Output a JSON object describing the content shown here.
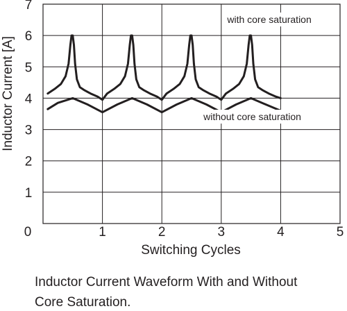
{
  "chart_data": {
    "type": "line",
    "xlabel": "Switching Cycles",
    "ylabel": "Inductor Current [A]",
    "xlim": [
      0,
      5
    ],
    "ylim": [
      0,
      7
    ],
    "x_ticks": [
      0,
      1,
      2,
      3,
      4,
      5
    ],
    "y_ticks": [
      1,
      2,
      3,
      4,
      5,
      6,
      7
    ],
    "grid": true,
    "series": [
      {
        "name": "with core saturation",
        "color": "#231f20",
        "x": [
          0.08,
          0.2,
          0.3,
          0.38,
          0.43,
          0.46,
          0.48,
          0.5,
          0.52,
          0.54,
          0.57,
          0.62,
          0.7,
          0.8,
          0.92,
          1.0,
          1.08,
          1.2,
          1.3,
          1.38,
          1.43,
          1.46,
          1.48,
          1.5,
          1.52,
          1.54,
          1.57,
          1.62,
          1.7,
          1.8,
          1.92,
          2.0,
          2.08,
          2.2,
          2.3,
          2.38,
          2.43,
          2.46,
          2.48,
          2.5,
          2.52,
          2.54,
          2.57,
          2.62,
          2.7,
          2.8,
          2.92,
          3.0,
          3.08,
          3.2,
          3.3,
          3.38,
          3.43,
          3.46,
          3.48,
          3.5,
          3.52,
          3.54,
          3.57,
          3.62,
          3.7,
          3.8,
          3.92,
          4.0
        ],
        "y": [
          4.15,
          4.3,
          4.45,
          4.7,
          5.1,
          5.7,
          6.0,
          6.0,
          5.7,
          5.1,
          4.6,
          4.35,
          4.25,
          4.15,
          4.05,
          3.95,
          4.15,
          4.3,
          4.45,
          4.7,
          5.1,
          5.7,
          6.0,
          6.0,
          5.7,
          5.1,
          4.6,
          4.35,
          4.25,
          4.15,
          4.05,
          3.95,
          4.15,
          4.3,
          4.45,
          4.7,
          5.1,
          5.7,
          6.0,
          6.0,
          5.7,
          5.1,
          4.6,
          4.35,
          4.25,
          4.15,
          4.05,
          3.95,
          4.15,
          4.3,
          4.45,
          4.7,
          5.1,
          5.7,
          6.0,
          6.0,
          5.7,
          5.1,
          4.6,
          4.35,
          4.25,
          4.15,
          4.05,
          4.0
        ]
      },
      {
        "name": "without core saturation",
        "color": "#231f20",
        "x": [
          0.08,
          0.25,
          0.5,
          0.75,
          1.0,
          1.25,
          1.5,
          1.75,
          2.0,
          2.25,
          2.5,
          2.75,
          3.0,
          3.25,
          3.5,
          3.75,
          4.0
        ],
        "y": [
          3.65,
          3.85,
          4.0,
          3.8,
          3.55,
          3.8,
          4.0,
          3.8,
          3.55,
          3.8,
          4.0,
          3.8,
          3.55,
          3.8,
          4.0,
          3.8,
          3.6
        ]
      }
    ],
    "annotations": [
      {
        "text": "with core saturation",
        "x": 3.1,
        "y": 6.4
      },
      {
        "text": "without core saturation",
        "x": 2.7,
        "y": 3.3
      }
    ]
  },
  "caption": {
    "line1": "Inductor Current Waveform With and Without",
    "line2": "Core Saturation."
  }
}
